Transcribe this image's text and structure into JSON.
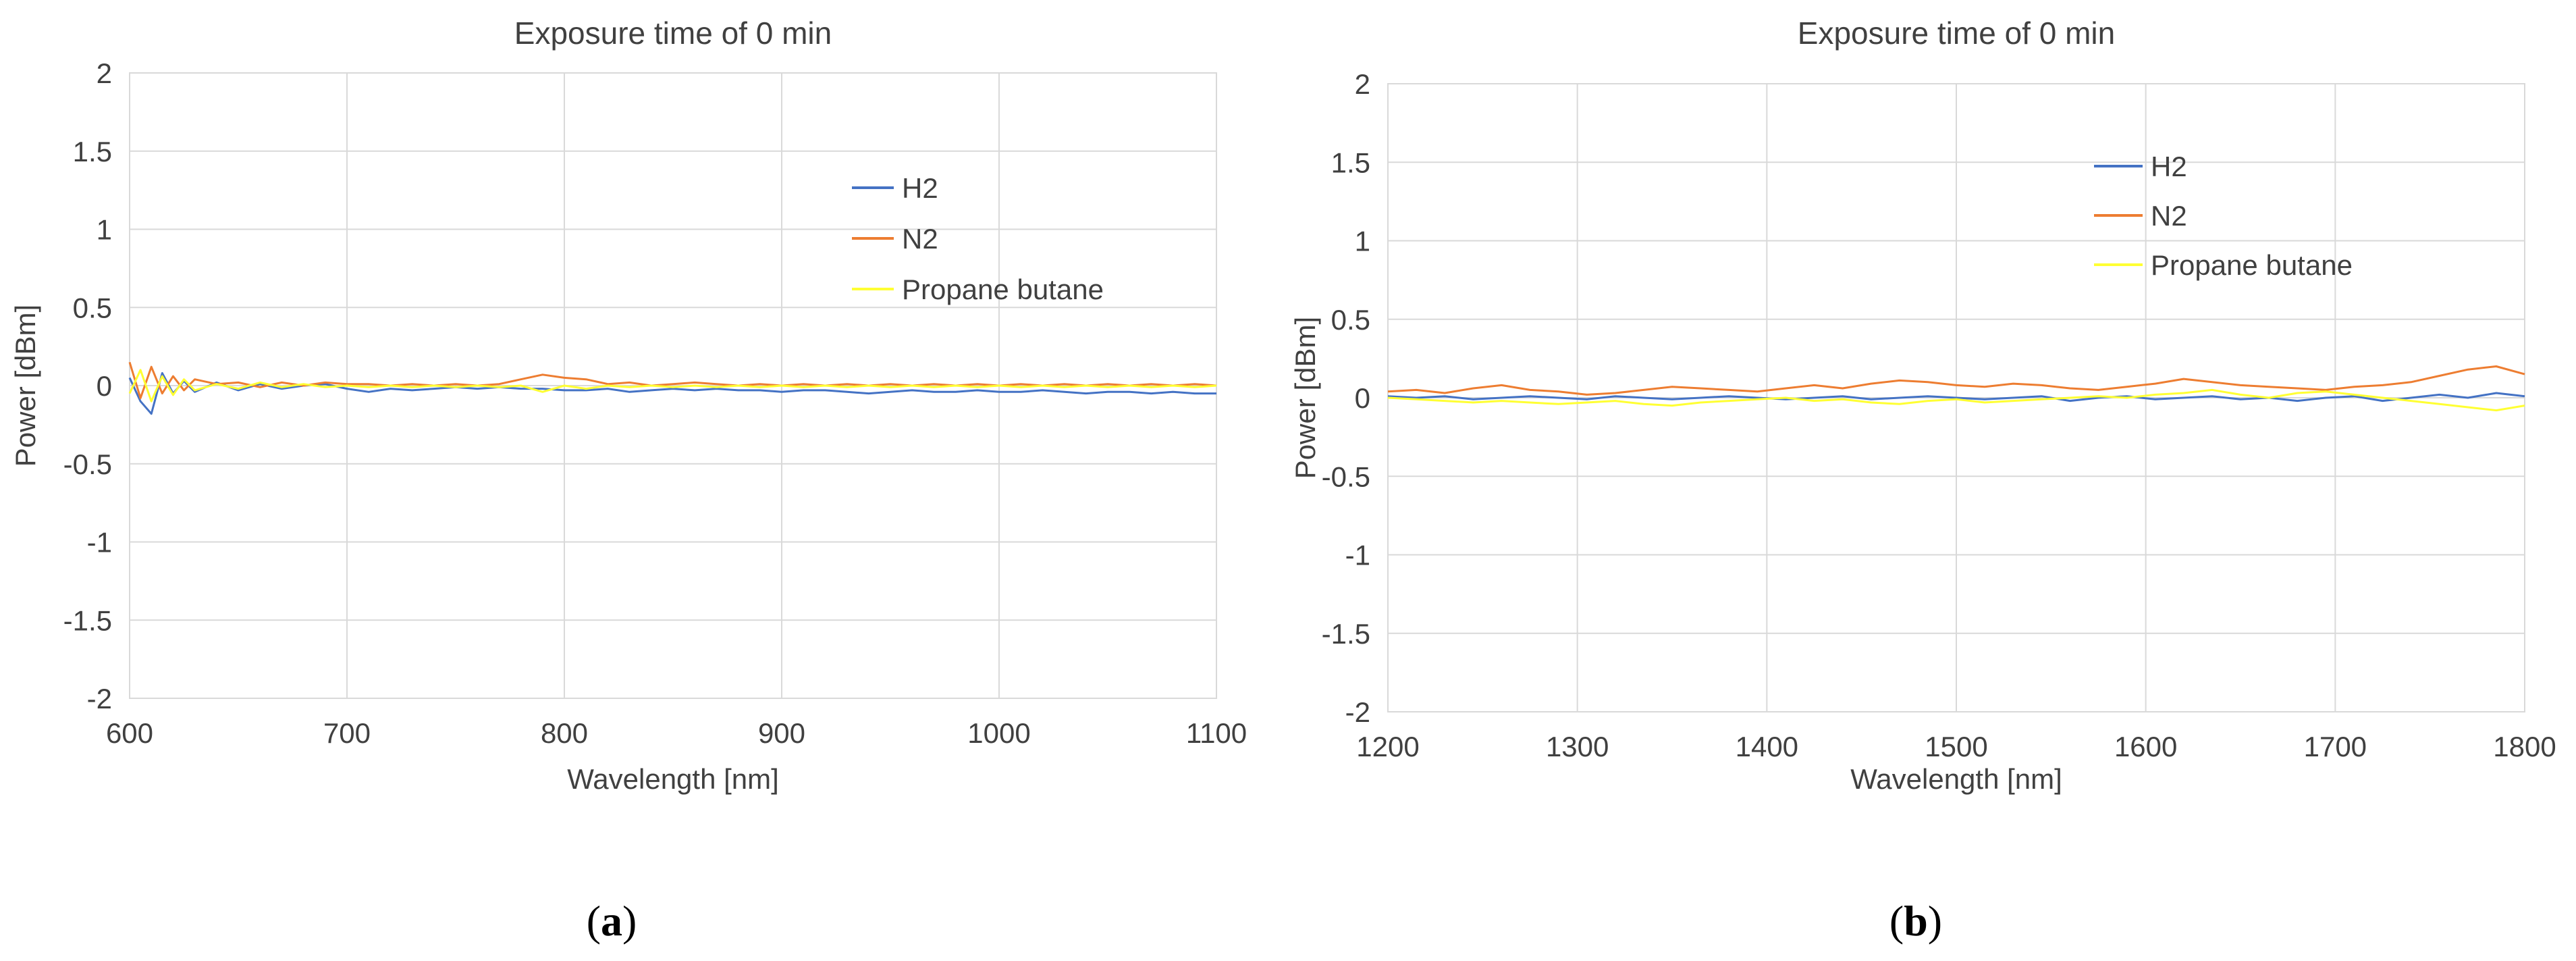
{
  "chart_data": [
    {
      "type": "line",
      "title": "Exposure time of 0 min",
      "xlabel": "Wavelength [nm]",
      "ylabel": "Power [dBm]",
      "xlim": [
        600,
        1100
      ],
      "ylim": [
        -2,
        2
      ],
      "x_ticks": [
        "600",
        "700",
        "800",
        "900",
        "1000",
        "1100"
      ],
      "y_ticks": [
        "2",
        "1.5",
        "1",
        "0.5",
        "0",
        "-0.5",
        "-1",
        "-1.5",
        "-2"
      ],
      "grid": true,
      "legend_position": "upper-right",
      "caption_open": "(",
      "caption": "a",
      "caption_close": ")",
      "series": [
        {
          "name": "H2",
          "color": "#4472c4",
          "x": [
            600,
            605,
            610,
            615,
            620,
            625,
            630,
            640,
            650,
            660,
            670,
            680,
            690,
            700,
            710,
            720,
            730,
            740,
            750,
            760,
            770,
            780,
            790,
            800,
            810,
            820,
            830,
            840,
            850,
            860,
            870,
            880,
            890,
            900,
            910,
            920,
            930,
            940,
            950,
            960,
            970,
            980,
            990,
            1000,
            1010,
            1020,
            1030,
            1040,
            1050,
            1060,
            1070,
            1080,
            1090,
            1100
          ],
          "values": [
            0.05,
            -0.1,
            -0.18,
            0.08,
            -0.05,
            0.03,
            -0.04,
            0.02,
            -0.03,
            0.01,
            -0.02,
            0.0,
            0.01,
            -0.02,
            -0.04,
            -0.02,
            -0.03,
            -0.02,
            -0.01,
            -0.02,
            -0.01,
            -0.02,
            -0.02,
            -0.03,
            -0.03,
            -0.02,
            -0.04,
            -0.03,
            -0.02,
            -0.03,
            -0.02,
            -0.03,
            -0.03,
            -0.04,
            -0.03,
            -0.03,
            -0.04,
            -0.05,
            -0.04,
            -0.03,
            -0.04,
            -0.04,
            -0.03,
            -0.04,
            -0.04,
            -0.03,
            -0.04,
            -0.05,
            -0.04,
            -0.04,
            -0.05,
            -0.04,
            -0.05,
            -0.05
          ]
        },
        {
          "name": "N2",
          "color": "#ed7d31",
          "x": [
            600,
            605,
            610,
            615,
            620,
            625,
            630,
            640,
            650,
            660,
            670,
            680,
            690,
            700,
            710,
            720,
            730,
            740,
            750,
            760,
            770,
            780,
            790,
            800,
            810,
            820,
            830,
            840,
            850,
            860,
            870,
            880,
            890,
            900,
            910,
            920,
            930,
            940,
            950,
            960,
            970,
            980,
            990,
            1000,
            1010,
            1020,
            1030,
            1040,
            1050,
            1060,
            1070,
            1080,
            1090,
            1100
          ],
          "values": [
            0.15,
            -0.08,
            0.12,
            -0.05,
            0.06,
            -0.03,
            0.04,
            0.01,
            0.02,
            -0.01,
            0.02,
            0.0,
            0.02,
            0.01,
            0.01,
            0.0,
            0.01,
            0.0,
            0.01,
            0.0,
            0.01,
            0.04,
            0.07,
            0.05,
            0.04,
            0.01,
            0.02,
            0.0,
            0.01,
            0.02,
            0.01,
            0.0,
            0.01,
            0.0,
            0.01,
            0.0,
            0.01,
            0.0,
            0.01,
            0.0,
            0.01,
            0.0,
            0.01,
            0.0,
            0.01,
            0.0,
            0.01,
            0.0,
            0.01,
            0.0,
            0.01,
            0.0,
            0.01,
            0.0
          ]
        },
        {
          "name": "Propane butane",
          "color": "#ffff33",
          "x": [
            600,
            605,
            610,
            615,
            620,
            625,
            630,
            640,
            650,
            660,
            670,
            680,
            690,
            700,
            710,
            720,
            730,
            740,
            750,
            760,
            770,
            780,
            790,
            800,
            810,
            820,
            830,
            840,
            850,
            860,
            870,
            880,
            890,
            900,
            910,
            920,
            930,
            940,
            950,
            960,
            970,
            980,
            990,
            1000,
            1010,
            1020,
            1030,
            1040,
            1050,
            1060,
            1070,
            1080,
            1090,
            1100
          ],
          "values": [
            -0.05,
            0.1,
            -0.1,
            0.06,
            -0.06,
            0.04,
            -0.03,
            0.01,
            -0.02,
            0.02,
            -0.01,
            0.01,
            -0.01,
            0.0,
            -0.01,
            0.0,
            -0.01,
            0.0,
            -0.01,
            0.0,
            -0.01,
            0.0,
            -0.04,
            0.0,
            -0.02,
            0.0,
            -0.01,
            0.0,
            -0.01,
            0.0,
            -0.01,
            0.0,
            -0.01,
            0.0,
            -0.01,
            0.0,
            -0.01,
            0.0,
            -0.01,
            0.0,
            -0.01,
            0.0,
            -0.01,
            0.0,
            -0.01,
            0.0,
            -0.01,
            0.0,
            -0.01,
            0.0,
            -0.01,
            0.0,
            -0.01,
            0.0
          ]
        }
      ]
    },
    {
      "type": "line",
      "title": "Exposure time of 0 min",
      "xlabel": "Wavelength [nm]",
      "ylabel": "Power [dBm]",
      "xlim": [
        1200,
        1800
      ],
      "ylim": [
        -2,
        2
      ],
      "x_ticks": [
        "1200",
        "1300",
        "1400",
        "1500",
        "1600",
        "1700",
        "1800"
      ],
      "y_ticks": [
        "2",
        "1.5",
        "1",
        "0.5",
        "0",
        "-0.5",
        "-1",
        "-1.5",
        "-2"
      ],
      "grid": true,
      "legend_position": "upper-right",
      "caption_open": "(",
      "caption": "b",
      "caption_close": ")",
      "series": [
        {
          "name": "H2",
          "color": "#4472c4",
          "x": [
            1200,
            1215,
            1230,
            1245,
            1260,
            1275,
            1290,
            1305,
            1320,
            1335,
            1350,
            1365,
            1380,
            1395,
            1410,
            1425,
            1440,
            1455,
            1470,
            1485,
            1500,
            1515,
            1530,
            1545,
            1560,
            1575,
            1590,
            1605,
            1620,
            1635,
            1650,
            1665,
            1680,
            1695,
            1710,
            1725,
            1740,
            1755,
            1770,
            1785,
            1800
          ],
          "values": [
            0.01,
            0.0,
            0.01,
            -0.01,
            0.0,
            0.01,
            0.0,
            -0.01,
            0.01,
            0.0,
            -0.01,
            0.0,
            0.01,
            0.0,
            -0.01,
            0.0,
            0.01,
            -0.01,
            0.0,
            0.01,
            0.0,
            -0.01,
            0.0,
            0.01,
            -0.02,
            0.0,
            0.01,
            -0.01,
            0.0,
            0.01,
            -0.01,
            0.0,
            -0.02,
            0.0,
            0.01,
            -0.02,
            0.0,
            0.02,
            0.0,
            0.03,
            0.01
          ]
        },
        {
          "name": "N2",
          "color": "#ed7d31",
          "x": [
            1200,
            1215,
            1230,
            1245,
            1260,
            1275,
            1290,
            1305,
            1320,
            1335,
            1350,
            1365,
            1380,
            1395,
            1410,
            1425,
            1440,
            1455,
            1470,
            1485,
            1500,
            1515,
            1530,
            1545,
            1560,
            1575,
            1590,
            1605,
            1620,
            1635,
            1650,
            1665,
            1680,
            1695,
            1710,
            1725,
            1740,
            1755,
            1770,
            1785,
            1800
          ],
          "values": [
            0.04,
            0.05,
            0.03,
            0.06,
            0.08,
            0.05,
            0.04,
            0.02,
            0.03,
            0.05,
            0.07,
            0.06,
            0.05,
            0.04,
            0.06,
            0.08,
            0.06,
            0.09,
            0.11,
            0.1,
            0.08,
            0.07,
            0.09,
            0.08,
            0.06,
            0.05,
            0.07,
            0.09,
            0.12,
            0.1,
            0.08,
            0.07,
            0.06,
            0.05,
            0.07,
            0.08,
            0.1,
            0.14,
            0.18,
            0.2,
            0.15
          ]
        },
        {
          "name": "Propane butane",
          "color": "#ffff33",
          "x": [
            1200,
            1215,
            1230,
            1245,
            1260,
            1275,
            1290,
            1305,
            1320,
            1335,
            1350,
            1365,
            1380,
            1395,
            1410,
            1425,
            1440,
            1455,
            1470,
            1485,
            1500,
            1515,
            1530,
            1545,
            1560,
            1575,
            1590,
            1605,
            1620,
            1635,
            1650,
            1665,
            1680,
            1695,
            1710,
            1725,
            1740,
            1755,
            1770,
            1785,
            1800
          ],
          "values": [
            0.0,
            -0.01,
            -0.02,
            -0.03,
            -0.02,
            -0.03,
            -0.04,
            -0.03,
            -0.02,
            -0.04,
            -0.05,
            -0.03,
            -0.02,
            -0.01,
            0.0,
            -0.02,
            -0.01,
            -0.03,
            -0.04,
            -0.02,
            -0.01,
            -0.03,
            -0.02,
            -0.01,
            0.0,
            0.01,
            0.0,
            0.02,
            0.03,
            0.05,
            0.02,
            0.0,
            0.03,
            0.04,
            0.02,
            0.0,
            -0.02,
            -0.04,
            -0.06,
            -0.08,
            -0.05
          ]
        }
      ]
    }
  ]
}
